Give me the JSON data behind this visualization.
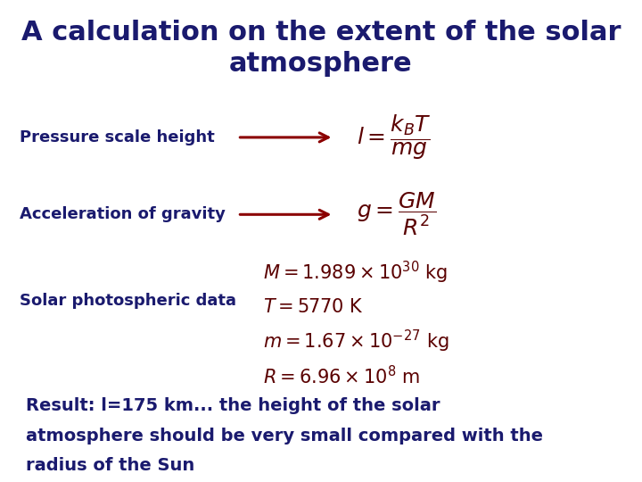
{
  "title_line1": "A calculation on the extent of the solar",
  "title_line2": "atmosphere",
  "title_color": "#1a1a6e",
  "title_fontsize": 22,
  "label1": "Pressure scale height",
  "label2": "Acceleration of gravity",
  "label3": "Solar photospheric data",
  "label_fontsize": 13,
  "label_color": "#1a1a6e",
  "arrow_color": "#8b0000",
  "formula_color": "#5a0000",
  "formula_fontsize": 15,
  "result_line1": "Result: l=175 km... the height of the solar",
  "result_line2": "atmosphere should be very small compared with the",
  "result_line3": "radius of the Sun",
  "result_color": "#1a1a6e",
  "result_fontsize": 14,
  "bg_color": "#ffffff"
}
